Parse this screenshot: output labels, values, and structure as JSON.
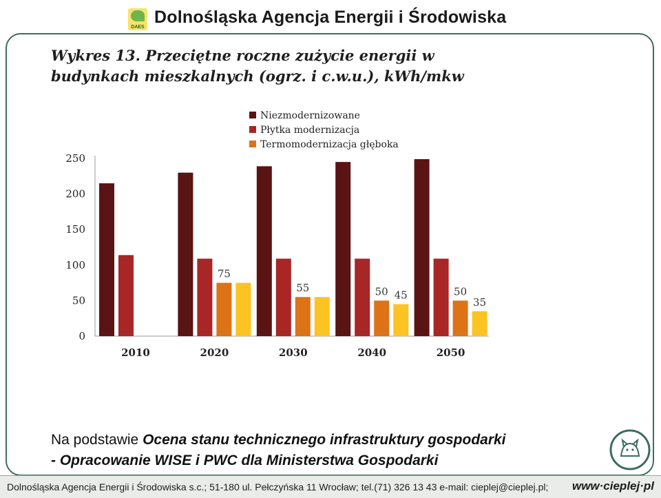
{
  "header": {
    "title": "Dolnośląska Agencja Energii i Środowiska",
    "logo_text": "DAES"
  },
  "chart_title": {
    "line1": "Wykres 13. Przeciętne roczne zużycie energii w",
    "line2": "budynkach mieszkalnych (ogrz. i c.w.u.), kWh/mkw"
  },
  "chart_data": {
    "type": "bar",
    "title": "Wykres 13. Przeciętne roczne zużycie energii w budynkach mieszkalnych (ogrz. i c.w.u.), kWh/mkw",
    "categories": [
      "2010",
      "2020",
      "2030",
      "2040",
      "2050"
    ],
    "ylim": [
      0,
      250
    ],
    "yticks": [
      0,
      50,
      100,
      150,
      200,
      250
    ],
    "grid": false,
    "legend_position": "top",
    "series": [
      {
        "name": "Niezmodernizowane",
        "color": "#5a1414",
        "values": [
          215,
          230,
          239,
          245,
          249
        ],
        "labels": [
          "",
          "",
          "",
          "",
          ""
        ]
      },
      {
        "name": "Płytka modernizacja",
        "color": "#a82626",
        "values": [
          114,
          109,
          109,
          109,
          109
        ],
        "labels": [
          "",
          "",
          "",
          "",
          ""
        ]
      },
      {
        "name": "Termomodernizacja głęboka",
        "color": "#dc7317",
        "values": [
          null,
          75,
          55,
          50,
          50
        ],
        "labels": [
          "",
          "75",
          "55",
          "50",
          "50"
        ]
      },
      {
        "name": "",
        "color": "#fcc323",
        "values": [
          null,
          75,
          55,
          45,
          35
        ],
        "labels": [
          "",
          "",
          "",
          "45",
          "35"
        ]
      }
    ]
  },
  "source": {
    "prefix": "Na podstawie ",
    "line1_italic": "Ocena stanu technicznego infrastruktury gospodarki",
    "line2_italic": "- Opracowanie WISE i PWC dla Ministerstwa Gospodarki"
  },
  "footer": {
    "text": "Dolnośląska Agencja Energii i Środowiska s.c.; 51-180 ul. Pełczyńska 11 Wrocław; tel.(71) 326 13 43 e-mail: cieplej@cieplej.pl;",
    "url": "www·cieplej·pl"
  },
  "colors": {
    "frame": "#3d6b60",
    "axis": "#999999"
  }
}
